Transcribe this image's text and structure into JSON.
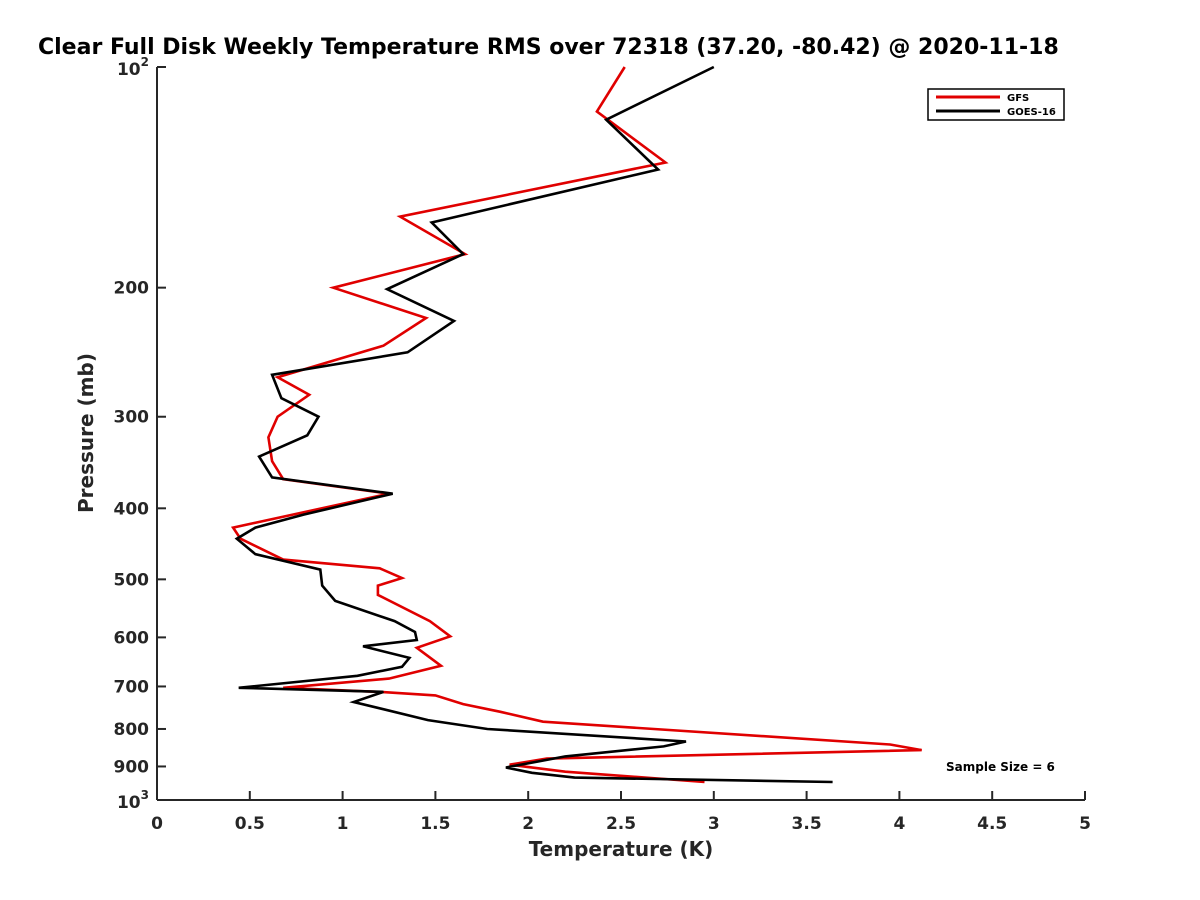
{
  "chart_data": {
    "type": "line",
    "title": "Clear Full Disk Weekly Temperature RMS over 72318 (37.20, -80.42) @ 2020-11-18",
    "xlabel": "Temperature (K)",
    "ylabel": "Pressure (mb)",
    "xlim": [
      0,
      5
    ],
    "ylim": [
      100,
      1000
    ],
    "y_scale": "log",
    "y_reversed": true,
    "x_ticks": [
      {
        "value": 0,
        "label": "0"
      },
      {
        "value": 0.5,
        "label": "0.5"
      },
      {
        "value": 1,
        "label": "1"
      },
      {
        "value": 1.5,
        "label": "1.5"
      },
      {
        "value": 2,
        "label": "2"
      },
      {
        "value": 2.5,
        "label": "2.5"
      },
      {
        "value": 3,
        "label": "3"
      },
      {
        "value": 3.5,
        "label": "3.5"
      },
      {
        "value": 4,
        "label": "4"
      },
      {
        "value": 4.5,
        "label": "4.5"
      },
      {
        "value": 5,
        "label": "5"
      }
    ],
    "y_ticks": [
      {
        "value": 200,
        "label": "200"
      },
      {
        "value": 300,
        "label": "300"
      },
      {
        "value": 400,
        "label": "400"
      },
      {
        "value": 500,
        "label": "500"
      },
      {
        "value": 600,
        "label": "600"
      },
      {
        "value": 700,
        "label": "700"
      },
      {
        "value": 800,
        "label": "800"
      },
      {
        "value": 900,
        "label": "900"
      }
    ],
    "y_power_ticks": [
      {
        "value": 100,
        "base": "10",
        "exp": "2"
      },
      {
        "value": 1000,
        "base": "10",
        "exp": "3"
      }
    ],
    "grid": false,
    "legend_position": "top-right",
    "series": [
      {
        "name": "GFS",
        "color": "#e00000",
        "points": [
          [
            2.52,
            100
          ],
          [
            2.37,
            115
          ],
          [
            2.74,
            135
          ],
          [
            1.31,
            160
          ],
          [
            1.66,
            180
          ],
          [
            0.95,
            200
          ],
          [
            1.45,
            220
          ],
          [
            1.22,
            240
          ],
          [
            0.65,
            265
          ],
          [
            0.82,
            280
          ],
          [
            0.65,
            300
          ],
          [
            0.6,
            320
          ],
          [
            0.62,
            345
          ],
          [
            0.68,
            365
          ],
          [
            1.25,
            382
          ],
          [
            0.41,
            425
          ],
          [
            0.45,
            440
          ],
          [
            0.68,
            470
          ],
          [
            1.2,
            483
          ],
          [
            1.32,
            498
          ],
          [
            1.19,
            510
          ],
          [
            1.19,
            525
          ],
          [
            1.47,
            570
          ],
          [
            1.58,
            598
          ],
          [
            1.4,
            620
          ],
          [
            1.53,
            656
          ],
          [
            1.25,
            683
          ],
          [
            0.68,
            703
          ],
          [
            1.2,
            712
          ],
          [
            1.5,
            720
          ],
          [
            1.65,
            740
          ],
          [
            1.85,
            758
          ],
          [
            2.08,
            782
          ],
          [
            3.95,
            840
          ],
          [
            4.12,
            855
          ],
          [
            2.1,
            878
          ],
          [
            1.9,
            895
          ],
          [
            2.2,
            915
          ],
          [
            2.95,
            945
          ]
        ]
      },
      {
        "name": "GOES-16",
        "color": "#000000",
        "points": [
          [
            3.0,
            100
          ],
          [
            2.42,
            118
          ],
          [
            2.7,
            138
          ],
          [
            1.48,
            163
          ],
          [
            1.65,
            180
          ],
          [
            1.24,
            201
          ],
          [
            1.6,
            222
          ],
          [
            1.35,
            245
          ],
          [
            0.62,
            263
          ],
          [
            0.67,
            283
          ],
          [
            0.87,
            300
          ],
          [
            0.81,
            318
          ],
          [
            0.55,
            340
          ],
          [
            0.62,
            363
          ],
          [
            1.27,
            382
          ],
          [
            0.79,
            408
          ],
          [
            0.53,
            425
          ],
          [
            0.43,
            440
          ],
          [
            0.53,
            462
          ],
          [
            0.88,
            485
          ],
          [
            0.89,
            510
          ],
          [
            0.96,
            535
          ],
          [
            1.28,
            570
          ],
          [
            1.39,
            590
          ],
          [
            1.4,
            605
          ],
          [
            1.11,
            617
          ],
          [
            1.36,
            640
          ],
          [
            1.32,
            658
          ],
          [
            1.08,
            677
          ],
          [
            0.44,
            703
          ],
          [
            1.22,
            712
          ],
          [
            1.06,
            735
          ],
          [
            1.46,
            778
          ],
          [
            1.78,
            800
          ],
          [
            2.85,
            832
          ],
          [
            2.73,
            845
          ],
          [
            2.2,
            872
          ],
          [
            1.88,
            903
          ],
          [
            2.02,
            918
          ],
          [
            2.25,
            932
          ],
          [
            3.64,
            945
          ]
        ]
      }
    ],
    "annotations": [
      {
        "text": "Sample Size = 6"
      }
    ]
  }
}
